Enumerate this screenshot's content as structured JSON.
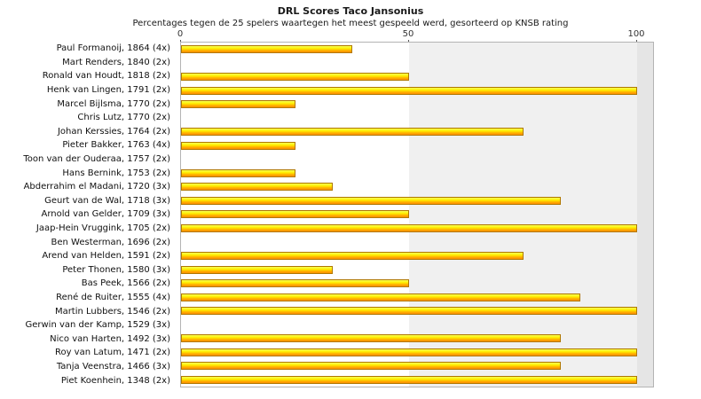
{
  "chart_data": {
    "type": "bar",
    "orientation": "horizontal",
    "title": "DRL Scores Taco Jansonius",
    "subtitle": "Percentages tegen de 25 spelers waartegen het meest gespeeld werd, gesorteerd op KNSB rating",
    "xlabel": "",
    "ylabel": "",
    "xlim": [
      0,
      100
    ],
    "x_ticks": [
      0,
      50,
      100
    ],
    "legend": "none",
    "grid": "band 50-100 shaded",
    "categories": [
      "Paul Formanoij, 1864 (4x)",
      "Mart Renders, 1840 (2x)",
      "Ronald van Houdt, 1818 (2x)",
      "Henk van Lingen, 1791 (2x)",
      "Marcel Bijlsma, 1770 (2x)",
      "Chris Lutz, 1770 (2x)",
      "Johan Kerssies, 1764 (2x)",
      "Pieter Bakker, 1763 (4x)",
      "Toon van der Ouderaa, 1757 (2x)",
      "Hans Bernink, 1753 (2x)",
      "Abderrahim el Madani, 1720 (3x)",
      "Geurt van de Wal, 1718 (3x)",
      "Arnold van Gelder, 1709 (3x)",
      "Jaap-Hein Vruggink, 1705 (2x)",
      "Ben Westerman, 1696 (2x)",
      "Arend van Helden, 1591 (2x)",
      "Peter Thonen, 1580 (3x)",
      "Bas Peek, 1566 (2x)",
      "René de Ruiter, 1555 (4x)",
      "Martin Lubbers, 1546 (2x)",
      "Gerwin van der Kamp, 1529 (3x)",
      "Nico van Harten, 1492 (3x)",
      "Roy van Latum, 1471 (2x)",
      "Tanja Veenstra, 1466 (3x)",
      "Piet Koenhein, 1348 (2x)"
    ],
    "values": [
      37.5,
      0,
      50,
      100,
      25,
      0,
      75,
      25,
      0,
      25,
      33.3,
      83.3,
      50,
      100,
      0,
      75,
      33.3,
      50,
      87.5,
      100,
      0,
      83.3,
      100,
      83.3,
      100
    ],
    "colors": {
      "bar_top": "#f6ff55",
      "bar_bottom": "#ff8c00",
      "bar_border": "#b07800",
      "band_50_100": "#f0f0f0",
      "band_right_margin": "#e5e5e5",
      "plot_border": "#b4b4b4"
    }
  }
}
